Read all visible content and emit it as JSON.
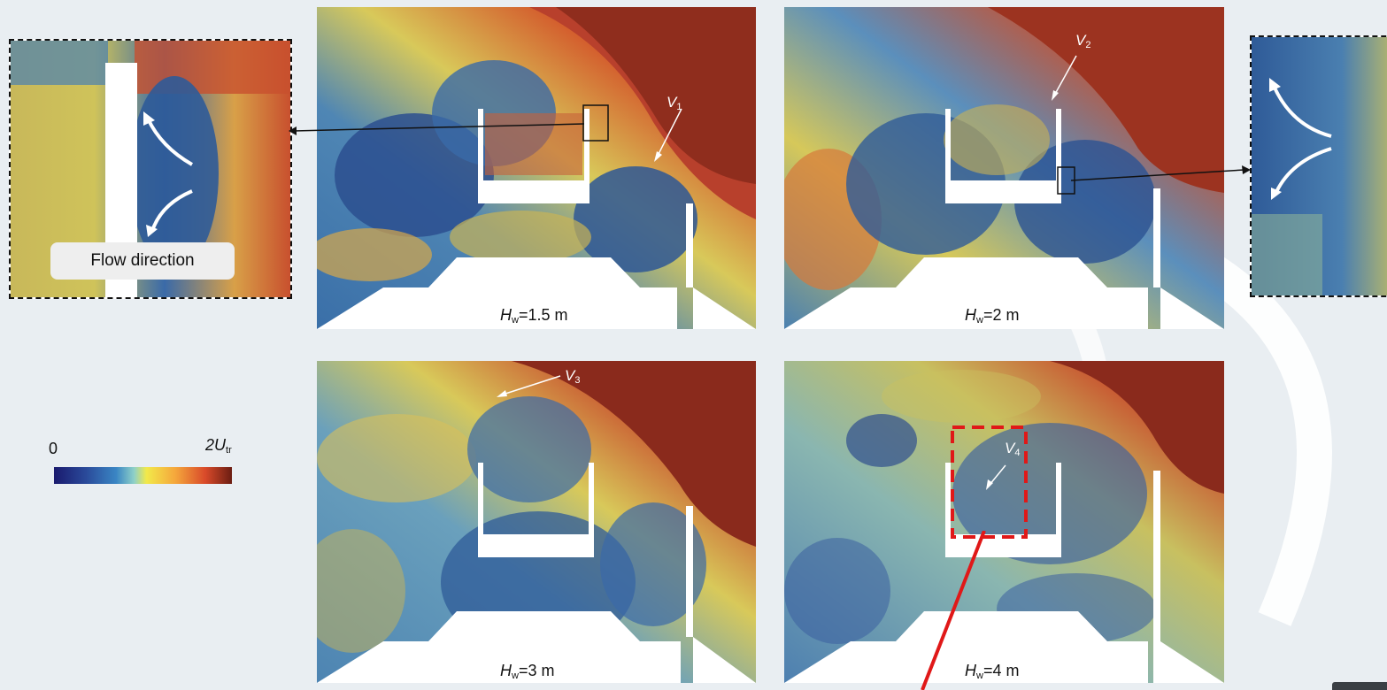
{
  "panels": {
    "p1": {
      "label_var": "H",
      "label_sub": "w",
      "label_val": "=1.5 m",
      "vortex": "V",
      "vortex_sub": "1"
    },
    "p2": {
      "label_var": "H",
      "label_sub": "w",
      "label_val": "=2 m",
      "vortex": "V",
      "vortex_sub": "2"
    },
    "p3": {
      "label_var": "H",
      "label_sub": "w",
      "label_val": "=3 m",
      "vortex": "V",
      "vortex_sub": "3"
    },
    "p4": {
      "label_var": "H",
      "label_sub": "w",
      "label_val": "=4 m",
      "vortex": "V",
      "vortex_sub": "4"
    }
  },
  "inset_left": {
    "caption": "Flow direction"
  },
  "colorbar": {
    "min_label": "0",
    "max_label_var": "2U",
    "max_label_sub": "tr",
    "colors": [
      "#1a1a6e",
      "#3a86c4",
      "#f2e94a",
      "#d94a2a",
      "#6b1d12"
    ]
  },
  "palette": {
    "blue": "#2f5f9e",
    "teal": "#6aa6b8",
    "yellow": "#d7cf5a",
    "orange": "#e08a3c",
    "red": "#c84a32",
    "darkred": "#8a2a1c"
  },
  "icons": [
    "curved-arrow-up-icon",
    "curved-arrow-down-icon",
    "pointer-arrow-icon"
  ]
}
